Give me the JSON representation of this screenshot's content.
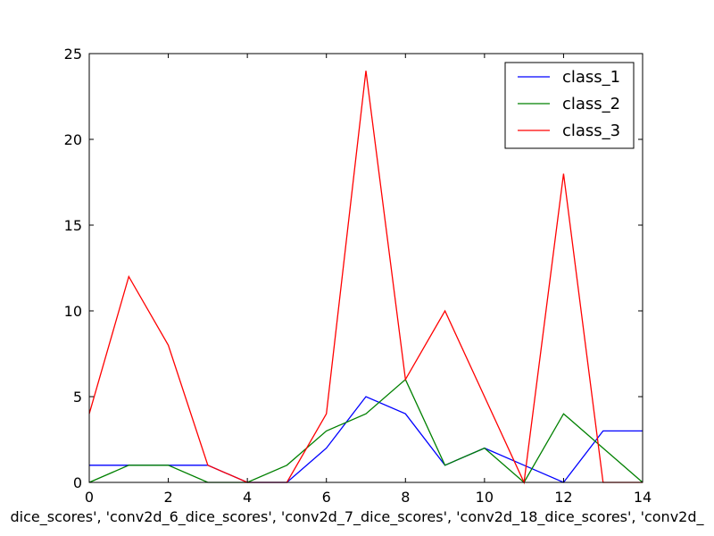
{
  "chart_data": {
    "type": "line",
    "title": "",
    "xlabel": "dice_scores', 'conv2d_6_dice_scores', 'conv2d_7_dice_scores', 'conv2d_18_dice_scores', 'conv2d_",
    "ylabel": "",
    "x": [
      0,
      1,
      2,
      3,
      4,
      5,
      6,
      7,
      8,
      9,
      10,
      11,
      12,
      13,
      14
    ],
    "xlim": [
      0,
      14
    ],
    "ylim": [
      0,
      25
    ],
    "xticks": [
      0,
      2,
      4,
      6,
      8,
      10,
      12,
      14
    ],
    "yticks": [
      0,
      5,
      10,
      15,
      20,
      25
    ],
    "grid": false,
    "legend_position": "top-right",
    "series": [
      {
        "name": "class_1",
        "color": "#0000ff",
        "values": [
          1,
          1,
          1,
          1,
          0,
          0,
          2,
          5,
          4,
          1,
          2,
          1,
          0,
          3,
          3
        ]
      },
      {
        "name": "class_2",
        "color": "#008000",
        "values": [
          0,
          1,
          1,
          0,
          0,
          1,
          3,
          4,
          6,
          1,
          2,
          0,
          4,
          2,
          0
        ]
      },
      {
        "name": "class_3",
        "color": "#ff0000",
        "values": [
          4,
          12,
          8,
          1,
          0,
          0,
          4,
          24,
          6,
          10,
          5,
          0,
          18,
          0,
          0
        ]
      }
    ]
  }
}
